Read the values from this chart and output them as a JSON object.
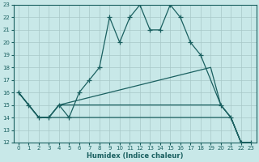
{
  "xlabel": "Humidex (Indice chaleur)",
  "bg_color": "#c8e8e8",
  "grid_color": "#a8c8c8",
  "line_color": "#1a6060",
  "xlim": [
    -0.5,
    23.5
  ],
  "ylim": [
    12,
    23
  ],
  "yticks": [
    12,
    13,
    14,
    15,
    16,
    17,
    18,
    19,
    20,
    21,
    22,
    23
  ],
  "xticks": [
    0,
    1,
    2,
    3,
    4,
    5,
    6,
    7,
    8,
    9,
    10,
    11,
    12,
    13,
    14,
    15,
    16,
    17,
    18,
    19,
    20,
    21,
    22,
    23
  ],
  "lines": [
    {
      "x": [
        0,
        1,
        2,
        3,
        4,
        5,
        6,
        7,
        8,
        9,
        10,
        11,
        12,
        13,
        14,
        15,
        16,
        17,
        18,
        20,
        21,
        22,
        23
      ],
      "y": [
        16,
        15,
        14,
        14,
        15,
        14,
        16,
        17,
        18,
        22,
        20,
        22,
        23,
        21,
        21,
        23,
        22,
        20,
        19,
        15,
        14,
        12,
        12
      ]
    },
    {
      "x": [
        0,
        2,
        3,
        4,
        19,
        20,
        21,
        22,
        23
      ],
      "y": [
        16,
        14,
        14,
        15,
        18,
        15,
        14,
        12,
        12
      ]
    },
    {
      "x": [
        0,
        2,
        3,
        4,
        16,
        17,
        18,
        19,
        20,
        21,
        22,
        23
      ],
      "y": [
        16,
        14,
        14,
        15,
        15,
        15,
        15,
        15,
        15,
        14,
        12,
        12
      ]
    },
    {
      "x": [
        0,
        2,
        3,
        4,
        20,
        21,
        22,
        23
      ],
      "y": [
        16,
        14,
        14,
        14,
        14,
        14,
        12,
        12
      ]
    }
  ]
}
